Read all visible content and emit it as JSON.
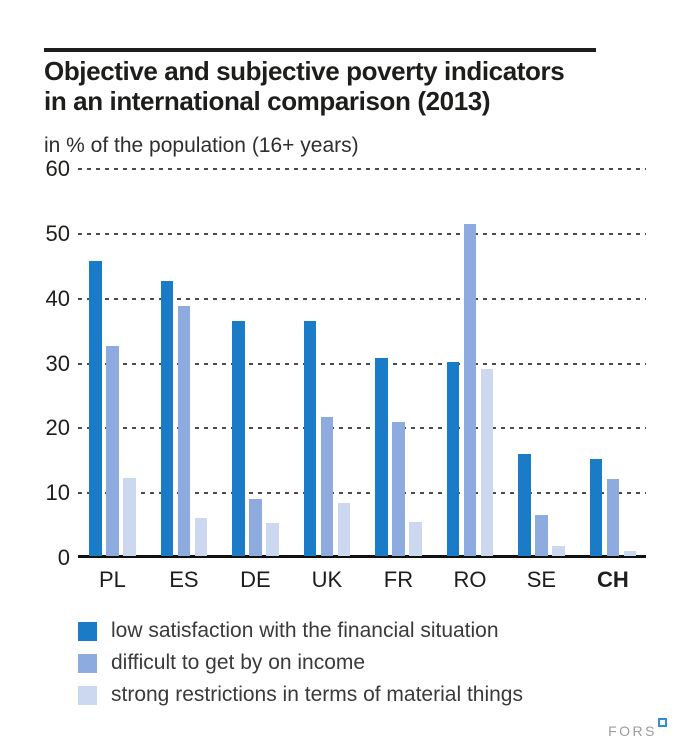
{
  "header": {
    "title_line1": "Objective and subjective poverty indicators",
    "title_line2": "in an international comparison (2013)",
    "subtitle": "in % of the population (16+ years)"
  },
  "chart_data": {
    "type": "bar",
    "title": "Objective and subjective poverty indicators in an international comparison (2013)",
    "subtitle": "in % of the population (16+ years)",
    "categories": [
      "PL",
      "ES",
      "DE",
      "UK",
      "FR",
      "RO",
      "SE",
      "CH"
    ],
    "bold_category": "CH",
    "series": [
      {
        "name": "low satisfaction with the financial situation",
        "color": "#1a7cc6",
        "values": [
          45.5,
          42.4,
          36.2,
          36.2,
          30.6,
          30.0,
          15.7,
          15.0
        ]
      },
      {
        "name": "difficult to get by on income",
        "color": "#8dabde",
        "values": [
          32.4,
          38.6,
          8.8,
          21.4,
          20.7,
          51.2,
          6.3,
          11.9
        ]
      },
      {
        "name": "strong restrictions in terms of material things",
        "color": "#ccd8f0",
        "values": [
          12.0,
          5.8,
          5.1,
          8.2,
          5.2,
          28.8,
          1.5,
          0.8
        ]
      }
    ],
    "xlabel": "",
    "ylabel": "in % of the population (16+ years)",
    "ylim": [
      0,
      60
    ],
    "yticks": [
      0,
      10,
      20,
      30,
      40,
      50,
      60
    ],
    "grid": "horizontal-dashed",
    "legend_position": "bottom"
  },
  "footer": {
    "logo_text": "FORS"
  }
}
